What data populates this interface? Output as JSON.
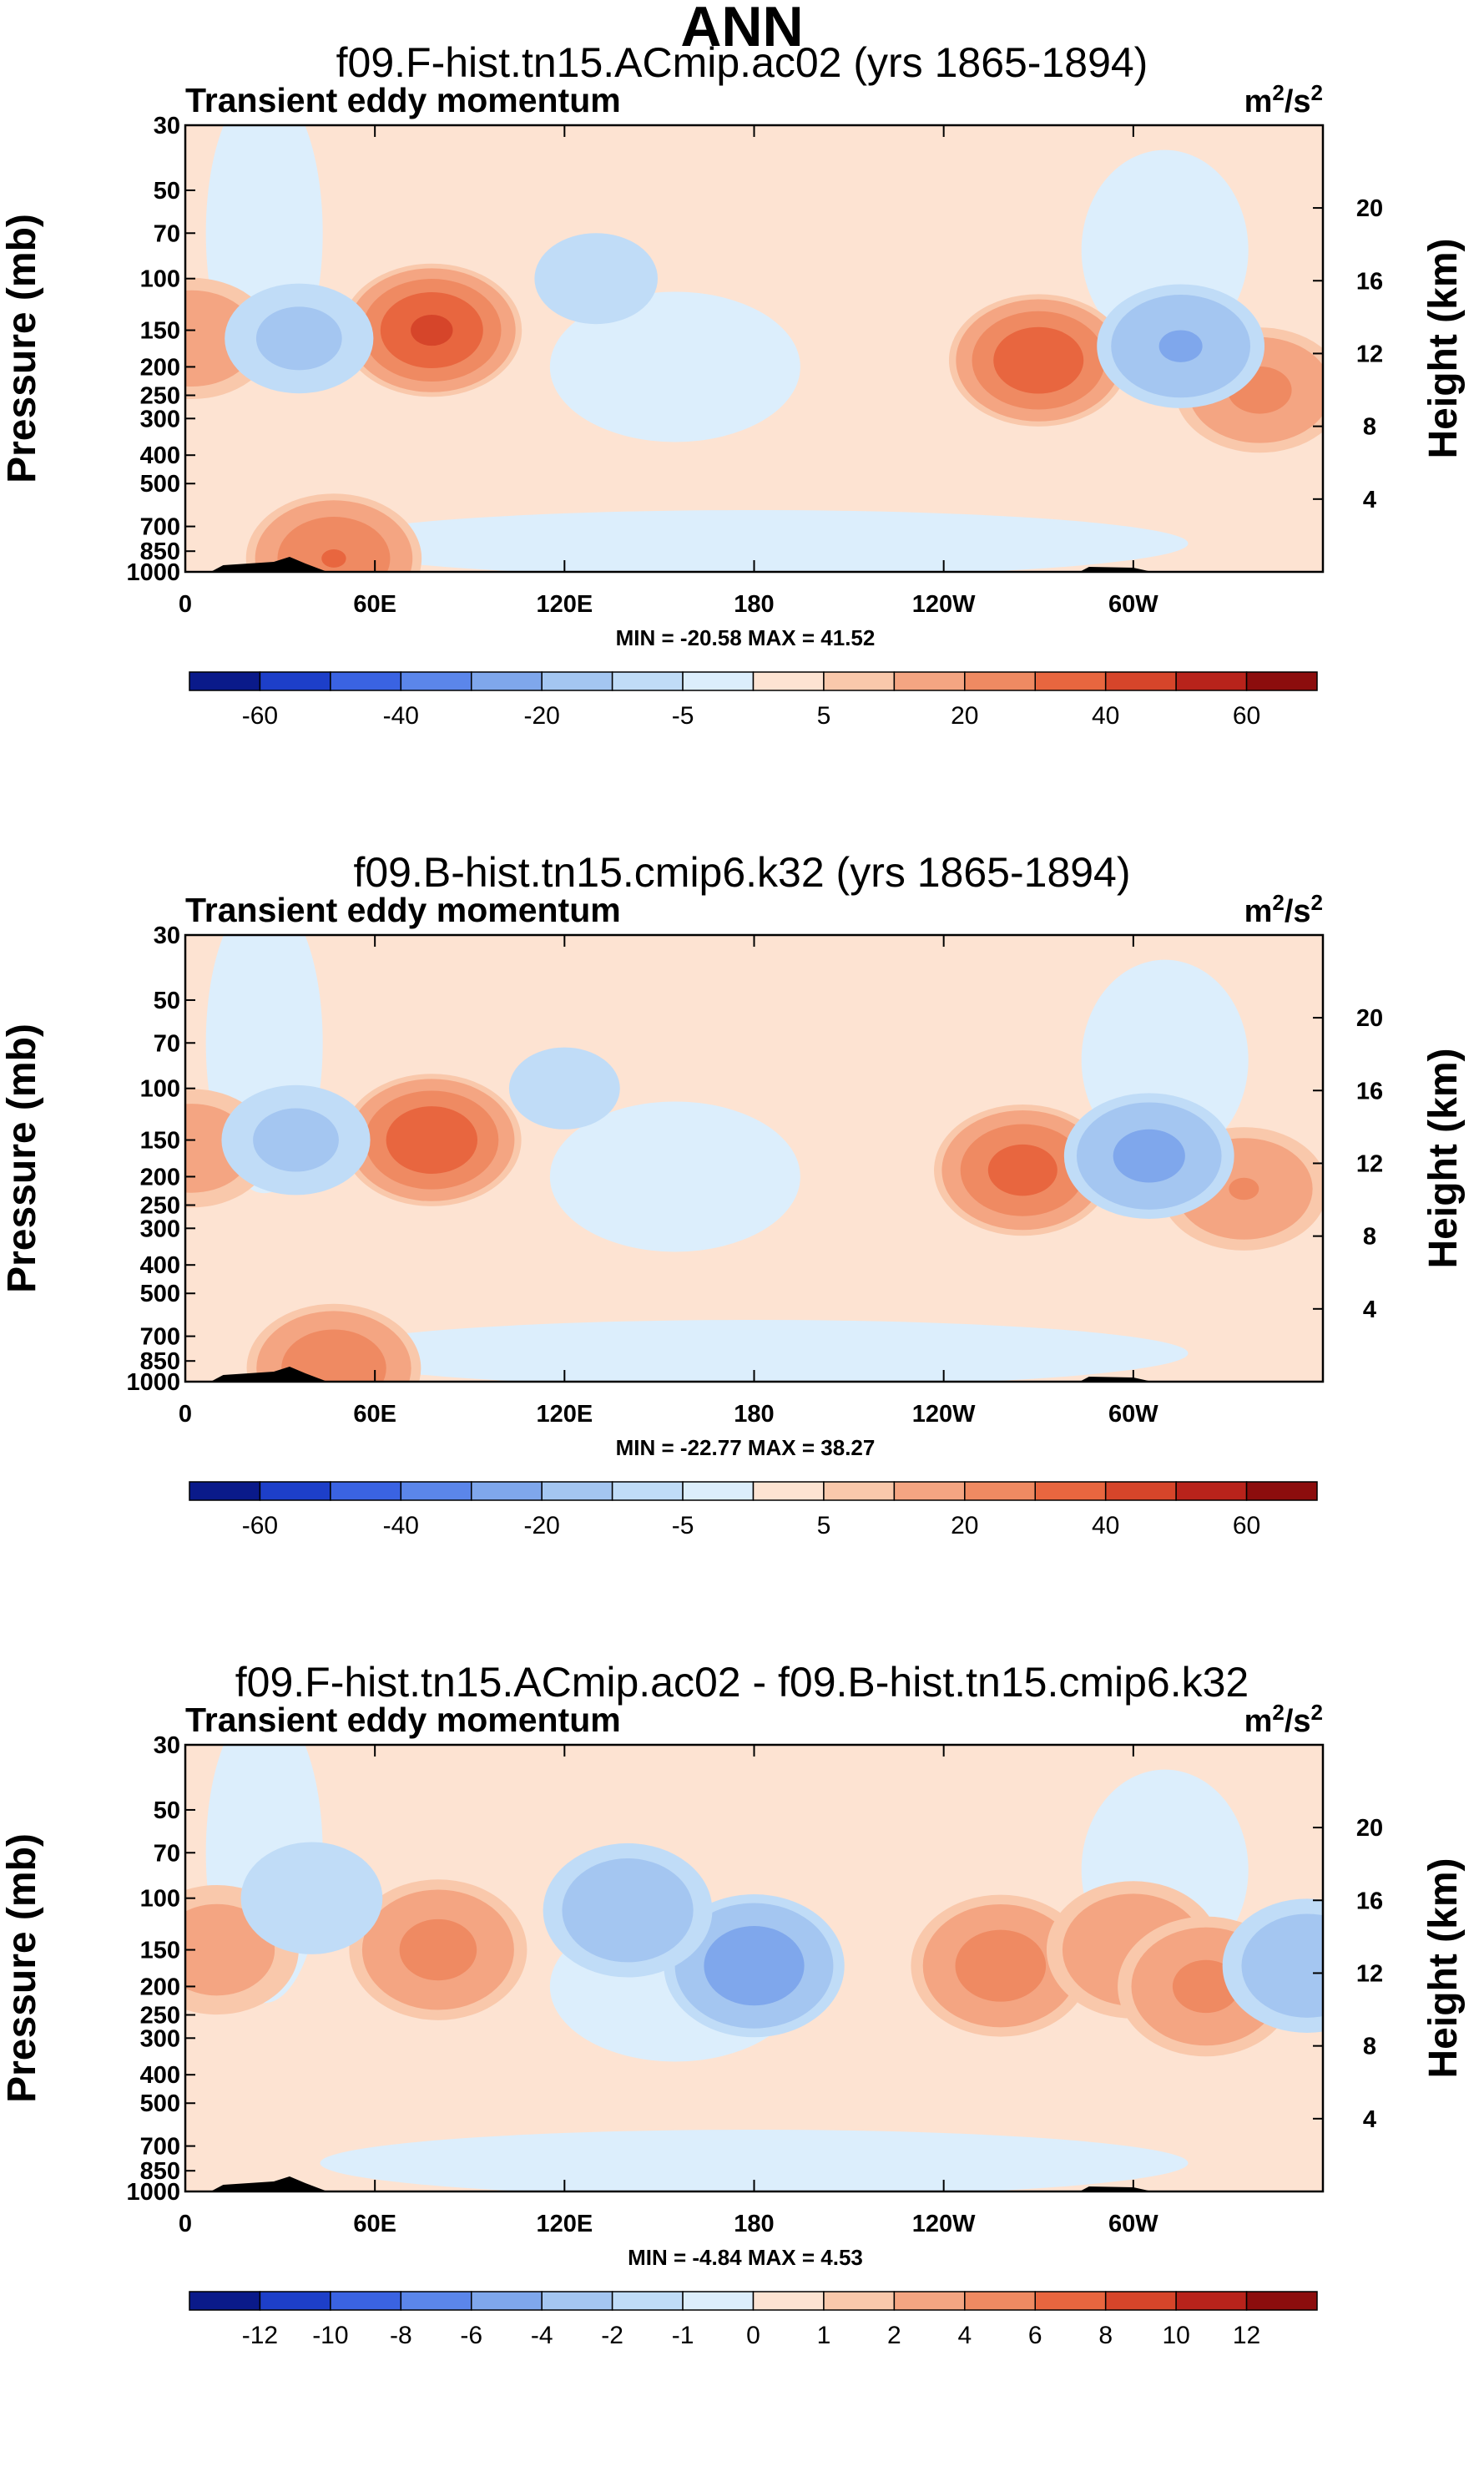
{
  "figure": {
    "title": "ANN"
  },
  "colors": {
    "positive": [
      "#fde3d2",
      "#f9c8ab",
      "#f4a582",
      "#ef8a62",
      "#e8663f",
      "#d6452a",
      "#b8231b",
      "#8c0d0d"
    ],
    "negative": [
      "#dceefc",
      "#c0dcf7",
      "#a4c6f1",
      "#7fa7ec",
      "#5b86ea",
      "#3a63e2",
      "#1d3fc9",
      "#0a1a8a"
    ],
    "terrain": "#000000"
  },
  "chart_data": [
    {
      "type": "heatmap",
      "title": "f09.F-hist.tn15.ACmip.ac02 (yrs 1865-1894)",
      "subtitle": "Transient eddy momentum",
      "units_label": "m",
      "units_exp": "2",
      "units_tail": "/s",
      "units_exp2": "2",
      "ylabel": "Pressure (mb)",
      "ylabel_right": "Height (km)",
      "x_ticks": [
        "0",
        "60E",
        "120E",
        "180",
        "120W",
        "60W"
      ],
      "y_ticks": [
        "30",
        "50",
        "70",
        "100",
        "150",
        "200",
        "250",
        "300",
        "400",
        "500",
        "700",
        "850",
        "1000"
      ],
      "y_right_ticks": [
        "20",
        "16",
        "12",
        "8",
        "4"
      ],
      "min_max": "MIN = -20.58   MAX =  41.52",
      "colorbar_labels": [
        "-60",
        "-40",
        "-20",
        "-5",
        "5",
        "20",
        "40",
        "60"
      ],
      "fields": [
        {
          "sign": 1,
          "lon": 78,
          "p": 150,
          "peak": 41.52
        },
        {
          "sign": 1,
          "lon": 270,
          "p": 190,
          "peak": 38
        },
        {
          "sign": 1,
          "lon": 340,
          "p": 240,
          "peak": 22
        },
        {
          "sign": 1,
          "lon": 2,
          "p": 160,
          "peak": 18
        },
        {
          "sign": 1,
          "lon": 47,
          "p": 900,
          "peak": 30
        },
        {
          "sign": -1,
          "lon": 36,
          "p": 160,
          "peak": -12
        },
        {
          "sign": -1,
          "lon": 315,
          "p": 170,
          "peak": -20.58
        },
        {
          "sign": -1,
          "lon": 130,
          "p": 100,
          "peak": -8
        }
      ]
    },
    {
      "type": "heatmap",
      "title": "f09.B-hist.tn15.cmip6.k32 (yrs 1865-1894)",
      "subtitle": "Transient eddy momentum",
      "units_label": "m",
      "units_exp": "2",
      "units_tail": "/s",
      "units_exp2": "2",
      "ylabel": "Pressure (mb)",
      "ylabel_right": "Height (km)",
      "x_ticks": [
        "0",
        "60E",
        "120E",
        "180",
        "120W",
        "60W"
      ],
      "y_ticks": [
        "30",
        "50",
        "70",
        "100",
        "150",
        "200",
        "250",
        "300",
        "400",
        "500",
        "700",
        "850",
        "1000"
      ],
      "y_right_ticks": [
        "20",
        "16",
        "12",
        "8",
        "4"
      ],
      "min_max": "MIN = -22.77   MAX =  38.27",
      "colorbar_labels": [
        "-60",
        "-40",
        "-20",
        "-5",
        "5",
        "20",
        "40",
        "60"
      ],
      "fields": [
        {
          "sign": 1,
          "lon": 78,
          "p": 150,
          "peak": 38.27
        },
        {
          "sign": 1,
          "lon": 265,
          "p": 190,
          "peak": 34
        },
        {
          "sign": 1,
          "lon": 335,
          "p": 220,
          "peak": 20
        },
        {
          "sign": 1,
          "lon": 2,
          "p": 160,
          "peak": 16
        },
        {
          "sign": 1,
          "lon": 47,
          "p": 900,
          "peak": 28
        },
        {
          "sign": -1,
          "lon": 35,
          "p": 150,
          "peak": -12
        },
        {
          "sign": -1,
          "lon": 305,
          "p": 170,
          "peak": -22.77
        },
        {
          "sign": -1,
          "lon": 120,
          "p": 100,
          "peak": -7
        }
      ]
    },
    {
      "type": "heatmap",
      "title": "f09.F-hist.tn15.ACmip.ac02 - f09.B-hist.tn15.cmip6.k32",
      "subtitle": "Transient eddy momentum",
      "units_label": "m",
      "units_exp": "2",
      "units_tail": "/s",
      "units_exp2": "2",
      "ylabel": "Pressure (mb)",
      "ylabel_right": "Height (km)",
      "x_ticks": [
        "0",
        "60E",
        "120E",
        "180",
        "120W",
        "60W"
      ],
      "y_ticks": [
        "30",
        "50",
        "70",
        "100",
        "150",
        "200",
        "250",
        "300",
        "400",
        "500",
        "700",
        "850",
        "1000"
      ],
      "y_right_ticks": [
        "20",
        "16",
        "12",
        "8",
        "4"
      ],
      "min_max": "MIN =  -4.84   MAX =   4.53",
      "colorbar_labels": [
        "-12",
        "-10",
        "-8",
        "-6",
        "-4",
        "-2",
        "-1",
        "0",
        "1",
        "2",
        "4",
        "6",
        "8",
        "10",
        "12"
      ],
      "fields": [
        {
          "sign": 1,
          "lon": 80,
          "p": 150,
          "peak": 4.2
        },
        {
          "sign": 1,
          "lon": 258,
          "p": 170,
          "peak": 4.53
        },
        {
          "sign": 1,
          "lon": 300,
          "p": 150,
          "peak": 3.5
        },
        {
          "sign": 1,
          "lon": 323,
          "p": 200,
          "peak": 4
        },
        {
          "sign": 1,
          "lon": 10,
          "p": 150,
          "peak": 2.5
        },
        {
          "sign": -1,
          "lon": 180,
          "p": 170,
          "peak": -4.84
        },
        {
          "sign": -1,
          "lon": 140,
          "p": 110,
          "peak": -3
        },
        {
          "sign": -1,
          "lon": 355,
          "p": 170,
          "peak": -3
        },
        {
          "sign": -1,
          "lon": 40,
          "p": 100,
          "peak": -1.5
        }
      ]
    }
  ]
}
